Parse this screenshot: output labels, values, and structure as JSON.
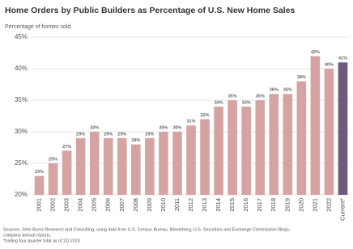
{
  "chart_data": {
    "type": "bar",
    "title": "Home Orders by Public Builders as Percentage of U.S. New Home Sales",
    "y_label": "Percentage of homes sold",
    "categories": [
      "2001",
      "2002",
      "2003",
      "2004",
      "2005",
      "2006",
      "2007",
      "2008",
      "2009",
      "2010",
      "2011",
      "2012",
      "2013",
      "2014",
      "2015",
      "2016",
      "2017",
      "2018",
      "2019",
      "2020",
      "2021",
      "2022",
      "Current*"
    ],
    "values": [
      23,
      25,
      27,
      29,
      30,
      29,
      29,
      28,
      29,
      30,
      30,
      31,
      32,
      34,
      35,
      34,
      35,
      36,
      36,
      38,
      42,
      40,
      41
    ],
    "value_labels": [
      "23%",
      "25%",
      "27%",
      "29%",
      "30%",
      "29%",
      "29%",
      "28%",
      "29%",
      "30%",
      "30%",
      "31%",
      "32%",
      "34%",
      "35%",
      "34%",
      "35%",
      "36%",
      "36%",
      "38%",
      "42%",
      "40%",
      "41%"
    ],
    "colors": [
      "#d6a3a3",
      "#d6a3a3",
      "#d6a3a3",
      "#d6a3a3",
      "#d6a3a3",
      "#d6a3a3",
      "#d6a3a3",
      "#d6a3a3",
      "#d6a3a3",
      "#d6a3a3",
      "#d6a3a3",
      "#d6a3a3",
      "#d6a3a3",
      "#d6a3a3",
      "#d6a3a3",
      "#d6a3a3",
      "#d6a3a3",
      "#d6a3a3",
      "#d6a3a3",
      "#d6a3a3",
      "#d6a3a3",
      "#d6a3a3",
      "#6b5b7d"
    ],
    "ylim": [
      20,
      45
    ],
    "yticks": [
      {
        "value": 20,
        "label": "20%"
      },
      {
        "value": 25,
        "label": "25%"
      },
      {
        "value": 30,
        "label": "30%"
      },
      {
        "value": 35,
        "label": "35%"
      },
      {
        "value": 40,
        "label": "40%"
      },
      {
        "value": 45,
        "label": "45%"
      }
    ],
    "grid": true,
    "source": [
      "Sources: John Burns Research and Consulting, using data from U.S. Census Bureau, Bloomberg, U.S. Securities and Exchange Commission filings,",
      "company annual reports."
    ],
    "note": "*trailing four-quarter total as of 2Q 2023"
  }
}
